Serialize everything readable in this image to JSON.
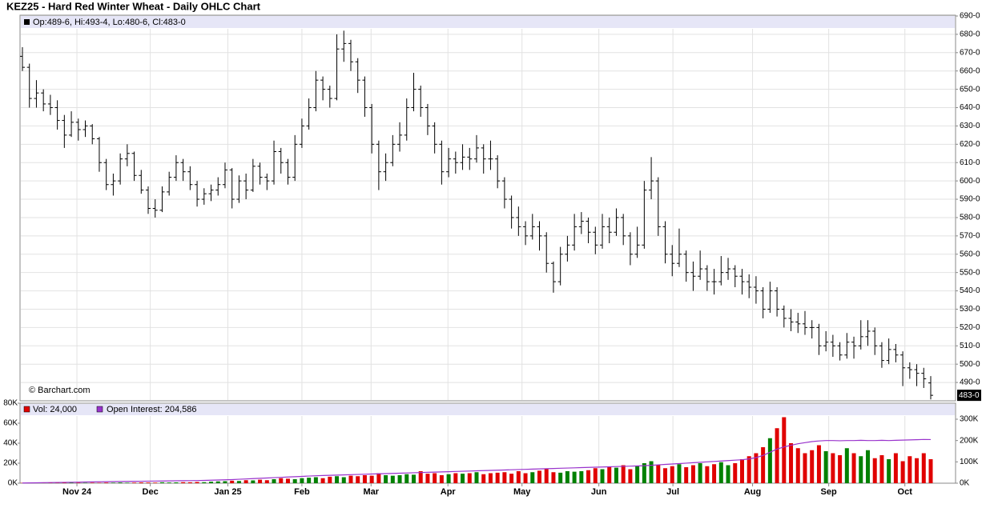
{
  "chart_data": {
    "type": "ohlc",
    "title": "KEZ25 - Hard Red Winter Wheat - Daily OHLC Chart",
    "header_label": "Op:489-6, Hi:493-4, Lo:480-6, Cl:483-0",
    "watermark": "© Barchart.com",
    "last_label": "483-0",
    "up_color": "#008000",
    "down_color": "#e00000",
    "grid": true,
    "xlim": [
      0,
      130
    ],
    "xticks": [
      {
        "value": 7.8,
        "label": "Nov 24"
      },
      {
        "value": 18.3,
        "label": "Dec"
      },
      {
        "value": 29.4,
        "label": "Jan 25"
      },
      {
        "value": 40,
        "label": "Feb"
      },
      {
        "value": 49.9,
        "label": "Mar"
      },
      {
        "value": 60.9,
        "label": "Apr"
      },
      {
        "value": 71.5,
        "label": "May"
      },
      {
        "value": 82.5,
        "label": "Jun"
      },
      {
        "value": 93.1,
        "label": "Jul"
      },
      {
        "value": 104.5,
        "label": "Aug"
      },
      {
        "value": 115.4,
        "label": "Sep"
      },
      {
        "value": 126.3,
        "label": "Oct"
      }
    ],
    "ylim": [
      480,
      690
    ],
    "yticks": [
      {
        "value": 490,
        "label": "490-0"
      },
      {
        "value": 500,
        "label": "500-0"
      },
      {
        "value": 510,
        "label": "510-0"
      },
      {
        "value": 520,
        "label": "520-0"
      },
      {
        "value": 530,
        "label": "530-0"
      },
      {
        "value": 540,
        "label": "540-0"
      },
      {
        "value": 550,
        "label": "550-0"
      },
      {
        "value": 560,
        "label": "560-0"
      },
      {
        "value": 570,
        "label": "570-0"
      },
      {
        "value": 580,
        "label": "580-0"
      },
      {
        "value": 590,
        "label": "590-0"
      },
      {
        "value": 600,
        "label": "600-0"
      },
      {
        "value": 610,
        "label": "610-0"
      },
      {
        "value": 620,
        "label": "620-0"
      },
      {
        "value": 630,
        "label": "630-0"
      },
      {
        "value": 640,
        "label": "640-0"
      },
      {
        "value": 650,
        "label": "650-0"
      },
      {
        "value": 660,
        "label": "660-0"
      },
      {
        "value": 670,
        "label": "670-0"
      },
      {
        "value": 680,
        "label": "680-0"
      },
      {
        "value": 690,
        "label": "690-0"
      }
    ],
    "ohlc": [
      [
        668,
        673,
        660,
        662
      ],
      [
        662,
        664,
        640,
        645
      ],
      [
        645,
        655,
        640,
        648
      ],
      [
        648,
        650,
        638,
        642
      ],
      [
        642,
        647,
        636,
        640
      ],
      [
        640,
        644,
        628,
        633
      ],
      [
        633,
        636,
        618,
        625
      ],
      [
        625,
        638,
        624,
        632
      ],
      [
        632,
        634,
        622,
        628
      ],
      [
        628,
        633,
        624,
        630
      ],
      [
        630,
        631,
        620,
        623
      ],
      [
        623,
        624,
        605,
        610
      ],
      [
        610,
        612,
        595,
        598
      ],
      [
        598,
        604,
        592,
        600
      ],
      [
        600,
        615,
        598,
        612
      ],
      [
        612,
        620,
        608,
        615
      ],
      [
        615,
        616,
        600,
        603
      ],
      [
        603,
        606,
        593,
        595
      ],
      [
        595,
        597,
        582,
        585
      ],
      [
        585,
        590,
        580,
        584
      ],
      [
        584,
        597,
        583,
        594
      ],
      [
        594,
        605,
        592,
        602
      ],
      [
        602,
        614,
        600,
        610
      ],
      [
        610,
        612,
        600,
        605
      ],
      [
        605,
        608,
        595,
        598
      ],
      [
        598,
        600,
        586,
        590
      ],
      [
        590,
        596,
        587,
        593
      ],
      [
        593,
        598,
        589,
        595
      ],
      [
        595,
        602,
        592,
        598
      ],
      [
        598,
        610,
        596,
        606
      ],
      [
        606,
        607,
        585,
        590
      ],
      [
        590,
        603,
        588,
        600
      ],
      [
        600,
        604,
        590,
        595
      ],
      [
        595,
        612,
        594,
        608
      ],
      [
        608,
        610,
        598,
        602
      ],
      [
        602,
        604,
        595,
        600
      ],
      [
        600,
        622,
        598,
        616
      ],
      [
        616,
        618,
        604,
        610
      ],
      [
        610,
        612,
        598,
        602
      ],
      [
        602,
        625,
        600,
        620
      ],
      [
        620,
        634,
        618,
        630
      ],
      [
        630,
        645,
        628,
        640
      ],
      [
        640,
        660,
        638,
        655
      ],
      [
        655,
        657,
        644,
        650
      ],
      [
        650,
        652,
        640,
        645
      ],
      [
        645,
        680,
        644,
        672
      ],
      [
        672,
        682,
        665,
        675
      ],
      [
        675,
        677,
        660,
        665
      ],
      [
        665,
        667,
        648,
        655
      ],
      [
        655,
        657,
        635,
        640
      ],
      [
        640,
        642,
        615,
        620
      ],
      [
        620,
        622,
        595,
        605
      ],
      [
        605,
        615,
        600,
        610
      ],
      [
        610,
        625,
        608,
        620
      ],
      [
        620,
        632,
        616,
        625
      ],
      [
        625,
        645,
        622,
        640
      ],
      [
        640,
        659,
        638,
        650
      ],
      [
        650,
        652,
        635,
        640
      ],
      [
        640,
        642,
        625,
        630
      ],
      [
        630,
        632,
        615,
        620
      ],
      [
        620,
        622,
        598,
        605
      ],
      [
        605,
        618,
        602,
        612
      ],
      [
        612,
        616,
        604,
        610
      ],
      [
        610,
        620,
        606,
        613
      ],
      [
        613,
        618,
        606,
        612
      ],
      [
        612,
        625,
        610,
        618
      ],
      [
        618,
        620,
        604,
        612
      ],
      [
        612,
        622,
        606,
        612
      ],
      [
        612,
        614,
        596,
        600
      ],
      [
        600,
        602,
        585,
        590
      ],
      [
        590,
        592,
        574,
        580
      ],
      [
        580,
        586,
        570,
        575
      ],
      [
        575,
        578,
        565,
        570
      ],
      [
        570,
        582,
        568,
        575
      ],
      [
        575,
        578,
        562,
        570
      ],
      [
        570,
        572,
        550,
        555
      ],
      [
        555,
        556,
        539,
        545
      ],
      [
        545,
        564,
        543,
        560
      ],
      [
        560,
        570,
        556,
        565
      ],
      [
        565,
        582,
        562,
        575
      ],
      [
        575,
        583,
        571,
        578
      ],
      [
        578,
        580,
        566,
        572
      ],
      [
        572,
        575,
        560,
        565
      ],
      [
        565,
        582,
        563,
        575
      ],
      [
        575,
        580,
        566,
        572
      ],
      [
        572,
        585,
        570,
        580
      ],
      [
        580,
        582,
        565,
        570
      ],
      [
        570,
        572,
        554,
        560
      ],
      [
        560,
        575,
        558,
        565
      ],
      [
        565,
        600,
        563,
        595
      ],
      [
        595,
        613,
        590,
        600
      ],
      [
        600,
        602,
        570,
        575
      ],
      [
        575,
        578,
        555,
        560
      ],
      [
        560,
        565,
        548,
        555
      ],
      [
        555,
        574,
        553,
        560
      ],
      [
        560,
        562,
        545,
        550
      ],
      [
        550,
        556,
        540,
        548
      ],
      [
        548,
        562,
        546,
        552
      ],
      [
        552,
        554,
        540,
        545
      ],
      [
        545,
        552,
        538,
        545
      ],
      [
        545,
        559,
        543,
        550
      ],
      [
        550,
        558,
        546,
        552
      ],
      [
        552,
        554,
        542,
        548
      ],
      [
        548,
        552,
        538,
        545
      ],
      [
        545,
        549,
        536,
        542
      ],
      [
        542,
        548,
        533,
        540
      ],
      [
        540,
        542,
        525,
        530
      ],
      [
        530,
        545,
        528,
        540
      ],
      [
        540,
        542,
        526,
        530
      ],
      [
        530,
        532,
        520,
        525
      ],
      [
        525,
        530,
        518,
        523
      ],
      [
        523,
        528,
        517,
        522
      ],
      [
        522,
        529,
        516,
        520
      ],
      [
        520,
        524,
        514,
        520
      ],
      [
        520,
        522,
        505,
        510
      ],
      [
        510,
        518,
        507,
        512
      ],
      [
        512,
        516,
        504,
        510
      ],
      [
        510,
        512,
        502,
        505
      ],
      [
        505,
        517,
        503,
        512
      ],
      [
        512,
        515,
        503,
        510
      ],
      [
        510,
        524,
        508,
        515
      ],
      [
        515,
        524,
        510,
        518
      ],
      [
        518,
        520,
        505,
        510
      ],
      [
        510,
        512,
        498,
        502
      ],
      [
        502,
        514,
        500,
        508
      ],
      [
        508,
        511,
        501,
        505
      ],
      [
        505,
        507,
        488,
        498
      ],
      [
        498,
        501,
        492,
        497
      ],
      [
        497,
        500,
        488,
        495
      ],
      [
        495,
        498,
        487,
        492
      ],
      [
        489.75,
        493.5,
        480.75,
        483
      ]
    ],
    "volume": {
      "legend": "Vol: 24,000",
      "color": "#e00000",
      "ylim": [
        0,
        80000
      ],
      "yticks": [
        {
          "value": 0,
          "label": "0K"
        },
        {
          "value": 20000,
          "label": "20K"
        },
        {
          "value": 40000,
          "label": "40K"
        },
        {
          "value": 60000,
          "label": "60K"
        },
        {
          "value": 80000,
          "label": "80K"
        }
      ],
      "values": [
        300,
        200,
        400,
        300,
        500,
        300,
        400,
        600,
        500,
        400,
        500,
        400,
        600,
        500,
        700,
        500,
        600,
        800,
        700,
        600,
        900,
        700,
        800,
        1000,
        900,
        1200,
        1000,
        1500,
        1800,
        2000,
        2500,
        2200,
        3000,
        2800,
        3500,
        3000,
        4000,
        5000,
        4500,
        4000,
        5000,
        5500,
        6000,
        5000,
        6500,
        7000,
        6000,
        7500,
        7000,
        8000,
        7500,
        10000,
        8000,
        7500,
        8000,
        9000,
        8500,
        12000,
        9500,
        10000,
        8000,
        9000,
        10000,
        9500,
        10000,
        11000,
        9000,
        10000,
        10500,
        11000,
        9500,
        12000,
        10000,
        11000,
        12500,
        14000,
        11000,
        10500,
        12000,
        11500,
        12000,
        13000,
        15000,
        14000,
        16000,
        15500,
        18000,
        14000,
        17000,
        20000,
        22000,
        18000,
        15000,
        17000,
        19000,
        16000,
        18000,
        20000,
        17000,
        19000,
        21000,
        18000,
        20000,
        24000,
        27000,
        30000,
        36000,
        45000,
        55000,
        66000,
        40000,
        35000,
        30000,
        33000,
        38000,
        32000,
        30000,
        28000,
        35000,
        30000,
        27000,
        33000,
        25000,
        28000,
        24000,
        30000,
        22000,
        27000,
        25000,
        30000,
        24000
      ]
    },
    "open_interest": {
      "legend": "Open Interest: 204,586",
      "color": "#9933cc",
      "y2lim": [
        0,
        375000
      ],
      "y2ticks": [
        {
          "value": 0,
          "label": "0K"
        },
        {
          "value": 100000,
          "label": "100K"
        },
        {
          "value": 200000,
          "label": "200K"
        },
        {
          "value": 300000,
          "label": "300K"
        }
      ],
      "values": [
        1000,
        1500,
        2000,
        2500,
        3000,
        3500,
        4000,
        4500,
        5000,
        5500,
        6000,
        6500,
        7000,
        7500,
        8000,
        8400,
        8800,
        9200,
        9600,
        10000,
        10400,
        10800,
        11200,
        11600,
        12000,
        12500,
        13000,
        14000,
        15000,
        16000,
        17000,
        18500,
        20000,
        21500,
        23000,
        24500,
        26000,
        27500,
        29000,
        30500,
        32000,
        33500,
        35000,
        36000,
        37000,
        38000,
        39000,
        40000,
        41000,
        42000,
        43000,
        44000,
        45000,
        46000,
        47000,
        48000,
        49000,
        50000,
        51000,
        52000,
        53000,
        54000,
        55000,
        56000,
        57000,
        58000,
        59000,
        60000,
        61000,
        62000,
        63000,
        64000,
        65000,
        66000,
        67000,
        68000,
        69000,
        70000,
        71000,
        72000,
        73000,
        74000,
        75000,
        76000,
        77000,
        78000,
        79000,
        80000,
        81000,
        82000,
        84000,
        86000,
        88000,
        90000,
        92000,
        94000,
        96000,
        98000,
        100000,
        102000,
        104000,
        106000,
        108000,
        110000,
        114000,
        120000,
        130000,
        145000,
        160000,
        170000,
        178000,
        185000,
        190000,
        195000,
        198000,
        200000,
        200000,
        199000,
        200000,
        200000,
        201000,
        200000,
        200000,
        201000,
        200000,
        201000,
        202000,
        203000,
        204000,
        205000,
        204586
      ]
    }
  }
}
